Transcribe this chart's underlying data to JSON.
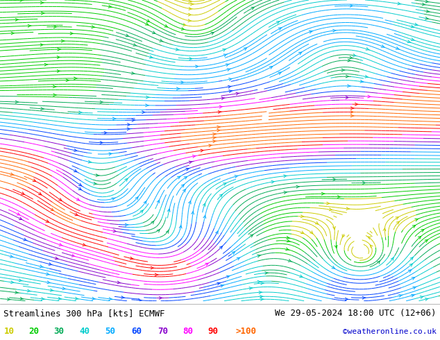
{
  "title_left": "Streamlines 300 hPa [kts] ECMWF",
  "title_right": "We 29-05-2024 18:00 UTC (12+06)",
  "credit": "©weatheronline.co.uk",
  "legend_values": [
    "10",
    "20",
    "30",
    "40",
    "50",
    "60",
    "70",
    "80",
    "90",
    ">100"
  ],
  "legend_colors": [
    "#cccc00",
    "#00cc00",
    "#00aa55",
    "#00cccc",
    "#00aaff",
    "#0044ff",
    "#8800cc",
    "#ff00ff",
    "#ff0000",
    "#ff6600"
  ],
  "bg_color": "#f0f0f0",
  "map_bg": "#f0f0f0",
  "figsize": [
    6.34,
    4.9
  ],
  "dpi": 100,
  "title_fontsize": 9,
  "legend_fontsize": 9,
  "credit_fontsize": 8,
  "speed_thresholds": [
    10,
    20,
    30,
    40,
    50,
    60,
    70,
    80,
    90,
    100
  ]
}
